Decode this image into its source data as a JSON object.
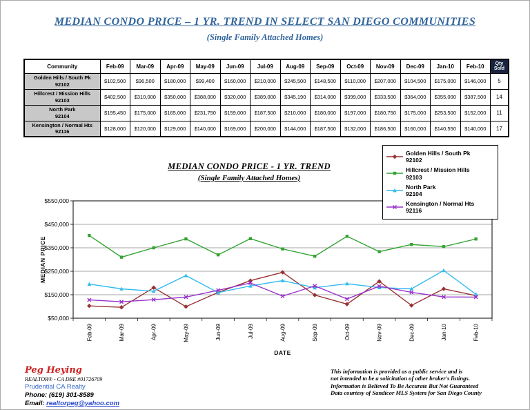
{
  "page": {
    "title": "MEDIAN CONDO PRICE – 1 YR. TREND IN SELECT SAN DIEGO COMMUNITIES",
    "subtitle": "(Single Family Attached Homes)"
  },
  "colors": {
    "title_blue": "#31659C",
    "qty_header_bg": "#17233F",
    "community_cell_bg": "#C8C8C8",
    "agent_red": "#CC2222",
    "agency_blue": "#3366CC",
    "link_blue": "#2244CC"
  },
  "table": {
    "community_header": "Community",
    "qty_header_line1": "Qty",
    "qty_header_line2": "Sold",
    "months": [
      "Feb-09",
      "Mar-09",
      "Apr-09",
      "May-09",
      "Jun-09",
      "Jul-09",
      "Aug-09",
      "Sep-09",
      "Oct-09",
      "Nov-09",
      "Dec-09",
      "Jan-10",
      "Feb-10"
    ],
    "rows": [
      {
        "community": "Golden Hills / South Pk",
        "zip": "92102",
        "values": [
          "$102,500",
          "$96,500",
          "$180,000",
          "$99,400",
          "$160,000",
          "$210,000",
          "$245,500",
          "$148,500",
          "$110,000",
          "$207,000",
          "$104,500",
          "$175,000",
          "$146,000"
        ],
        "qty": "5"
      },
      {
        "community": "Hillcrest / Mission Hills",
        "zip": "92103",
        "values": [
          "$402,500",
          "$310,000",
          "$350,000",
          "$388,000",
          "$320,000",
          "$389,000",
          "$345,190",
          "$314,000",
          "$399,000",
          "$333,500",
          "$364,000",
          "$355,000",
          "$387,500"
        ],
        "qty": "14"
      },
      {
        "community": "North Park",
        "zip": "92104",
        "values": [
          "$195,450",
          "$175,000",
          "$165,000",
          "$231,750",
          "$159,000",
          "$187,500",
          "$210,000",
          "$180,000",
          "$197,000",
          "$180,750",
          "$175,000",
          "$253,500",
          "$152,000"
        ],
        "qty": "11"
      },
      {
        "community": "Kensington / Normal Hts",
        "zip": "92116",
        "values": [
          "$128,000",
          "$120,000",
          "$129,000",
          "$140,000",
          "$169,000",
          "$200,000",
          "$144,000",
          "$187,500",
          "$132,000",
          "$186,500",
          "$160,000",
          "$140,550",
          "$140,000"
        ],
        "qty": "17"
      }
    ]
  },
  "chart": {
    "title": "MEDIAN CONDO PRICE - 1 YR. TREND",
    "subtitle": "(Single Family Attached Homes)",
    "y_axis_label": "MEDIAN PRICE",
    "x_axis_label": "DATE"
  },
  "chart_data": {
    "type": "line",
    "x": [
      "Feb-09",
      "Mar-09",
      "Apr-09",
      "May-09",
      "Jun-09",
      "Jul-09",
      "Aug-09",
      "Sep-09",
      "Oct-09",
      "Nov-09",
      "Dec-09",
      "Jan-10",
      "Feb-10"
    ],
    "series": [
      {
        "name": "Golden Hills / South Pk 92102",
        "color": "#993333",
        "values": [
          102500,
          96500,
          180000,
          99400,
          160000,
          210000,
          245500,
          148500,
          110000,
          207000,
          104500,
          175000,
          146000
        ]
      },
      {
        "name": "Hillcrest / Mission Hills 92103",
        "color": "#33A333",
        "values": [
          402500,
          310000,
          350000,
          388000,
          320000,
          389000,
          345190,
          314000,
          399000,
          333500,
          364000,
          355000,
          387500
        ]
      },
      {
        "name": "North Park 92104",
        "color": "#33BBEE",
        "values": [
          195450,
          175000,
          165000,
          231750,
          159000,
          187500,
          210000,
          180000,
          197000,
          180750,
          175000,
          253500,
          152000
        ]
      },
      {
        "name": "Kensington / Normal Hts 92116",
        "color": "#9933CC",
        "values": [
          128000,
          120000,
          129000,
          140000,
          169000,
          200000,
          144000,
          187500,
          132000,
          186500,
          160000,
          140550,
          140000
        ]
      }
    ],
    "ylim": [
      50000,
      550000
    ],
    "yticks": [
      "$550,000",
      "$450,000",
      "$350,000",
      "$250,000",
      "$150,000",
      "$50,000"
    ],
    "xlabel": "DATE",
    "ylabel": "MEDIAN PRICE",
    "grid": true,
    "legend_position": "top-right"
  },
  "legend": {
    "items": [
      {
        "line1": "Golden Hills / South Pk",
        "line2": "92102"
      },
      {
        "line1": "Hillcrest / Mission Hills",
        "line2": "92103"
      },
      {
        "line1": "North Park",
        "line2": "92104"
      },
      {
        "line1": "Kensington / Normal Hts",
        "line2": "92116"
      }
    ]
  },
  "footer": {
    "agent_name": "Peg Heying",
    "agent_title": "REALTOR® - CA DRE #01726709",
    "agency": "Prudential CA Realty",
    "phone_label": "Phone:",
    "phone": "(619) 301-8589",
    "email_label": "Email:",
    "email": "realtorpeg@yahoo.com",
    "disclaimer_lines": [
      "This information is provided as a public service and is",
      "not intended to be a solicitation of other broker's listings.",
      "Information is Believed To Be Accurate But Not Guaranteed",
      "Data courtesy of Sandicor MLS System for San Diego County"
    ]
  }
}
